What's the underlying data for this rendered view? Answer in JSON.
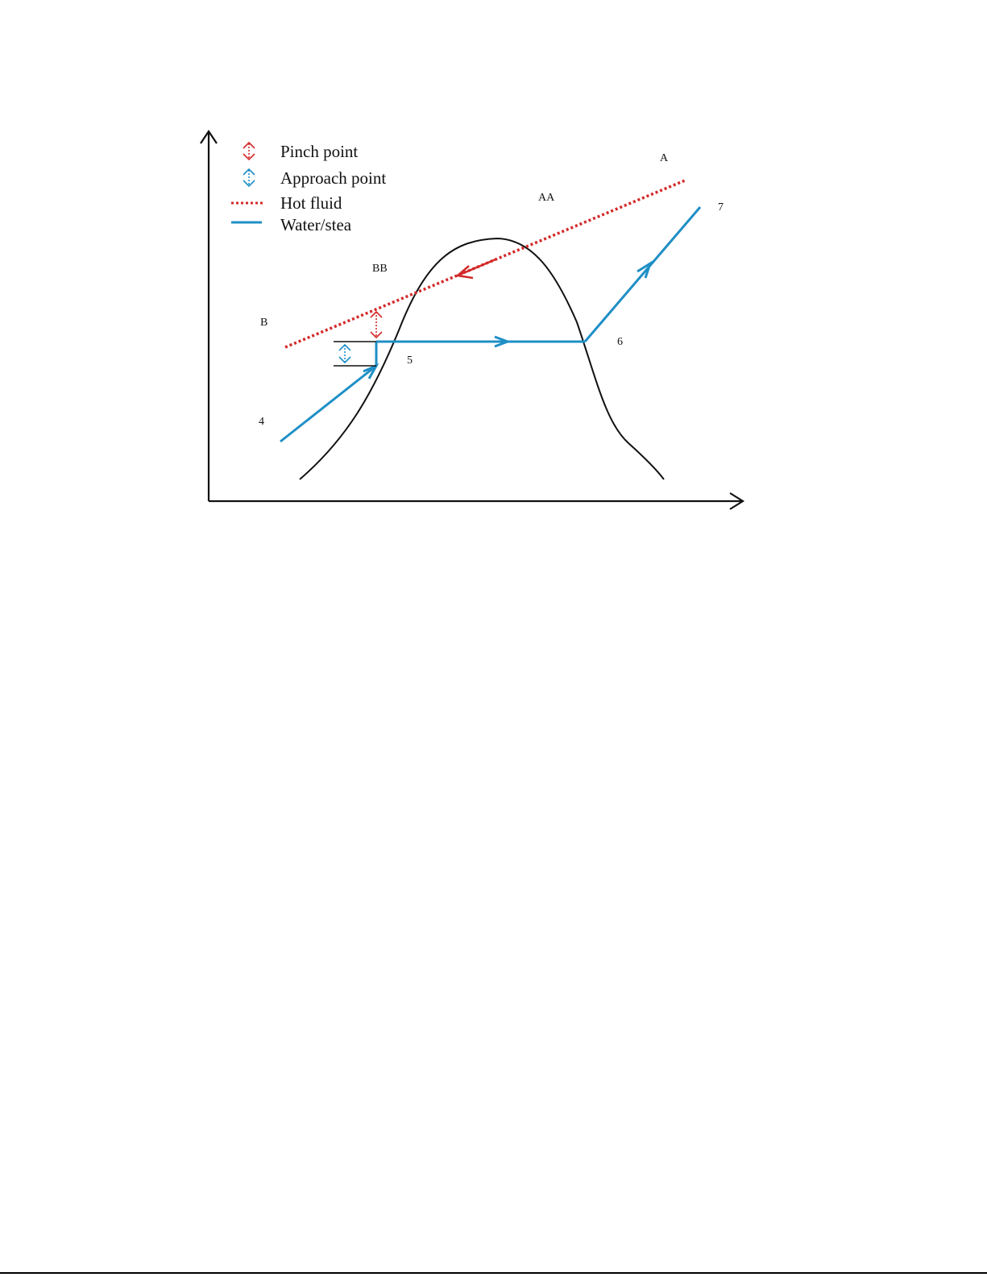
{
  "legend": {
    "pinch_label": "Pinch point",
    "approach_label": "Approach point",
    "hot_fluid_label": "Hot fluid",
    "water_label": "Water/stea"
  },
  "labels": {
    "A": "A",
    "AA": "AA",
    "BB": "BB",
    "B": "B",
    "p4": "4",
    "p5": "5",
    "p6": "6",
    "p7": "7"
  },
  "colors": {
    "hot_fluid": "#d42a2a",
    "water_steam": "#1f8fc6",
    "dome": "#111111",
    "axes": "#111111"
  },
  "icons": {
    "pinch": "double-headed-vertical-arrow-icon",
    "approach": "double-headed-vertical-arrow-icon"
  }
}
